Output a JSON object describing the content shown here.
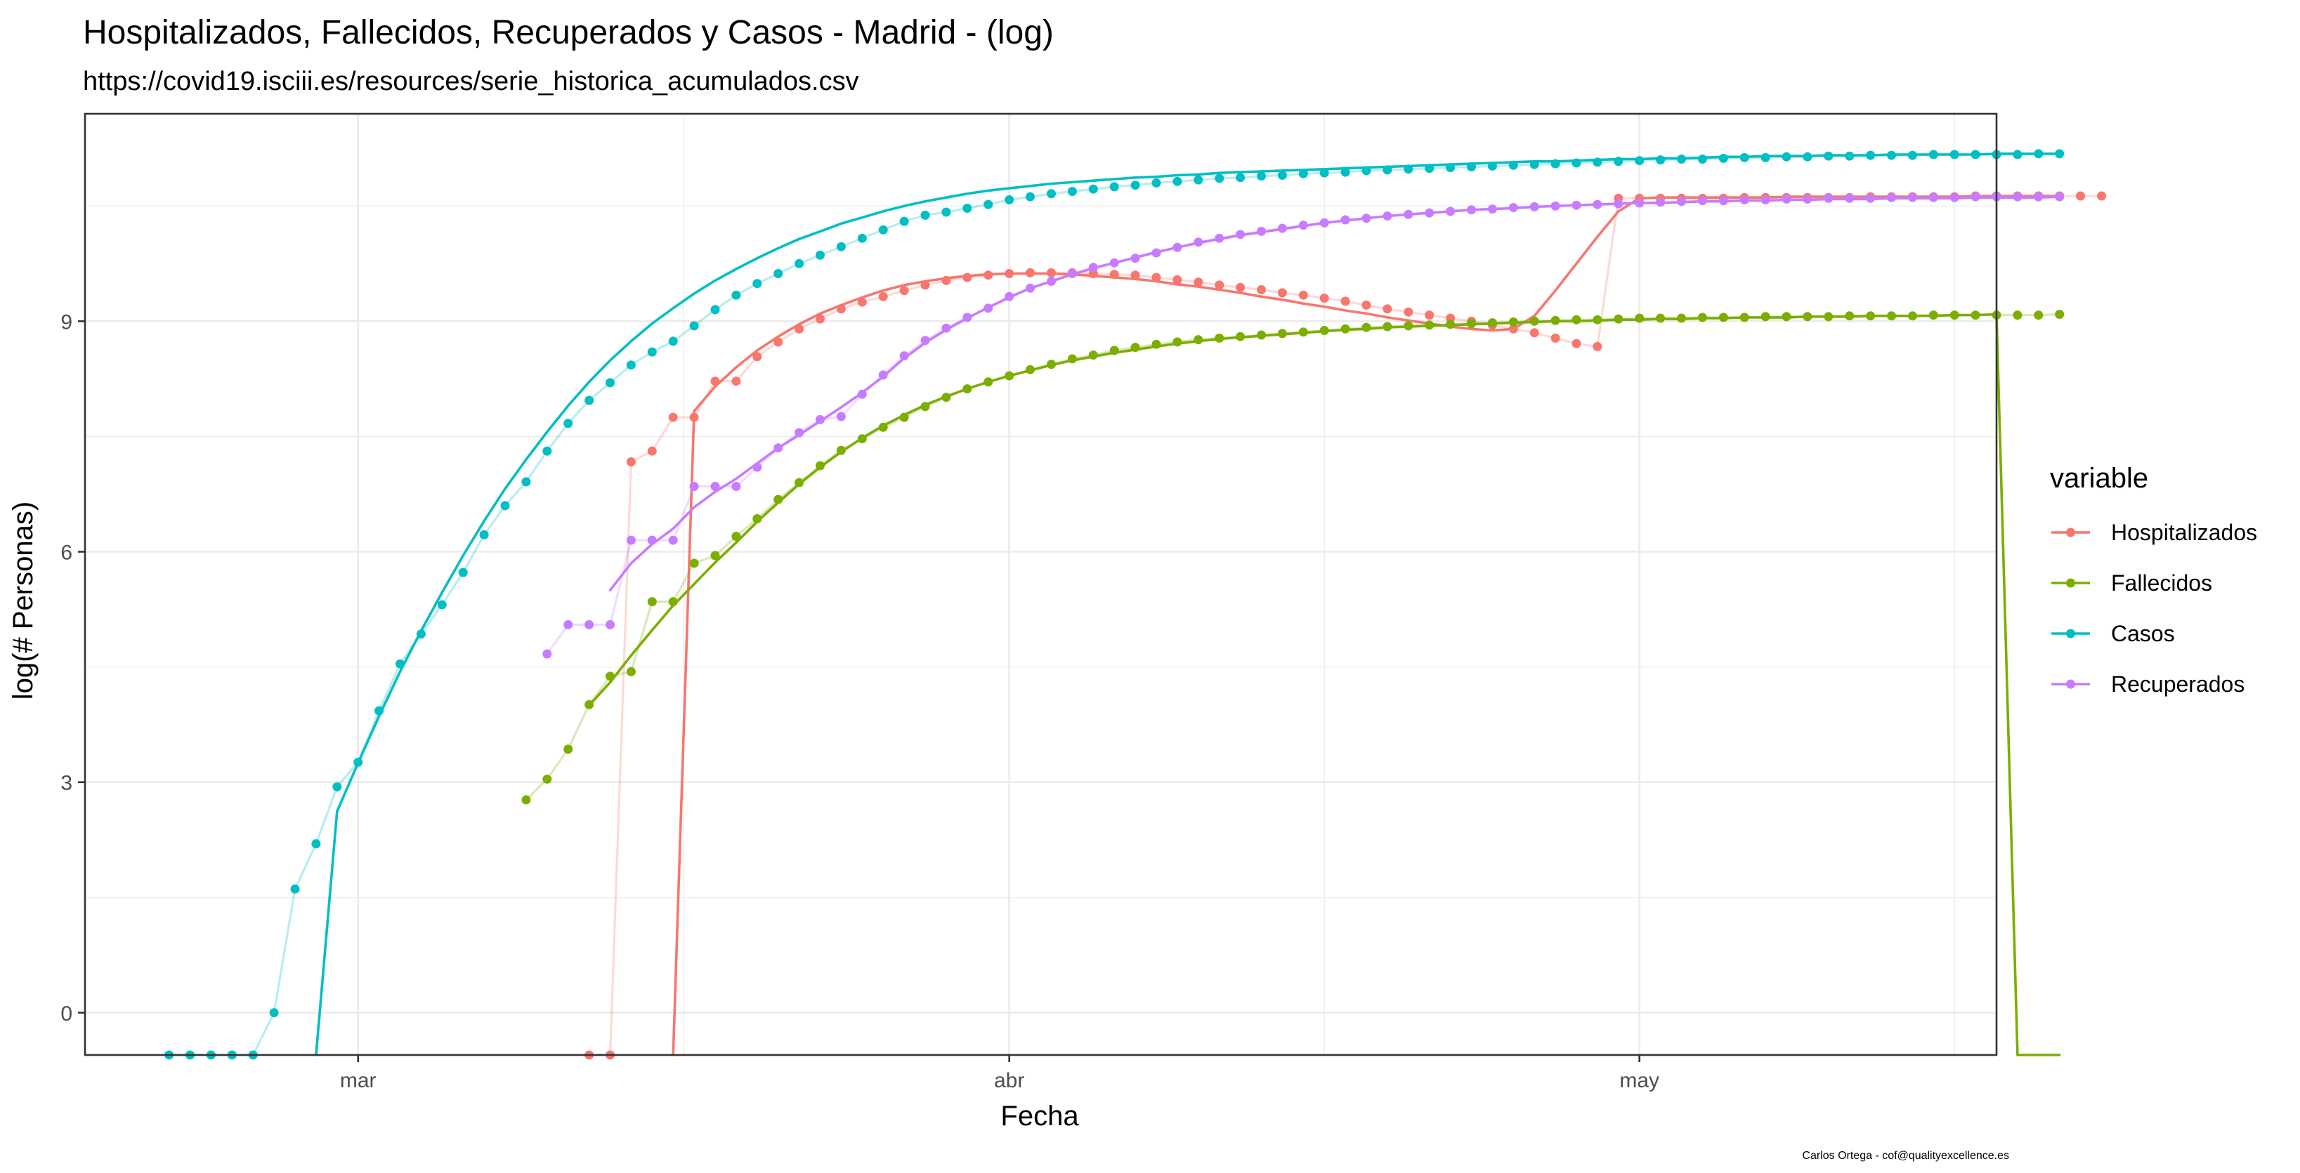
{
  "chart_data": {
    "type": "line",
    "title": "Hospitalizados, Fallecidos, Recuperados y Casos - Madrid - (log)",
    "subtitle": "https://covid19.isciii.es/resources/serie_historica_acumulados.csv",
    "xlabel": "Fecha",
    "ylabel": "log(# Personas)",
    "caption": "Carlos Ortega - cof@qualityexcellence.es",
    "x_start": "2020-02-21",
    "xlim": [
      "2020-02-17",
      "2020-05-18"
    ],
    "ylim": [
      -0.55,
      11.7
    ],
    "y_ticks": [
      0,
      3,
      6,
      9
    ],
    "x_ticks": [
      {
        "label": "mar",
        "date": "2020-03-01"
      },
      {
        "label": "abr",
        "date": "2020-04-01"
      },
      {
        "label": "may",
        "date": "2020-05-01"
      }
    ],
    "grid": true,
    "legend": {
      "title": "variable",
      "position": "right"
    },
    "series": [
      {
        "name": "Hospitalizados",
        "color": "#F8766D",
        "values": [
          null,
          null,
          null,
          null,
          null,
          null,
          null,
          null,
          null,
          null,
          null,
          null,
          null,
          null,
          null,
          null,
          null,
          null,
          null,
          null,
          -0.6,
          -0.6,
          7.17,
          7.31,
          7.75,
          7.75,
          8.22,
          8.22,
          8.54,
          8.73,
          8.9,
          9.03,
          9.16,
          9.25,
          9.32,
          9.4,
          9.47,
          9.53,
          9.57,
          9.6,
          9.62,
          9.63,
          9.63,
          9.63,
          9.62,
          9.61,
          9.6,
          9.57,
          9.54,
          9.51,
          9.47,
          9.44,
          9.41,
          9.37,
          9.34,
          9.3,
          9.26,
          9.21,
          9.16,
          9.12,
          9.08,
          9.04,
          9.0,
          8.95,
          8.9,
          8.85,
          8.78,
          8.71,
          8.67,
          10.6,
          10.6,
          10.6,
          10.6,
          10.6,
          10.6,
          10.61,
          10.61,
          10.61,
          10.61,
          10.61,
          10.61,
          10.62,
          10.62,
          10.62,
          10.62,
          10.62,
          10.63,
          10.63,
          10.63,
          10.63,
          10.63,
          10.63,
          10.63
        ],
        "smooth": [
          null,
          null,
          null,
          null,
          null,
          null,
          null,
          null,
          null,
          null,
          null,
          null,
          null,
          null,
          null,
          null,
          null,
          null,
          null,
          null,
          null,
          null,
          null,
          null,
          -0.6,
          7.83,
          8.15,
          8.4,
          8.62,
          8.8,
          8.96,
          9.1,
          9.21,
          9.31,
          9.4,
          9.47,
          9.52,
          9.56,
          9.59,
          9.61,
          9.62,
          9.62,
          9.62,
          9.61,
          9.59,
          9.57,
          9.55,
          9.52,
          9.48,
          9.45,
          9.41,
          9.37,
          9.32,
          9.28,
          9.23,
          9.19,
          9.14,
          9.1,
          9.05,
          9.01,
          8.97,
          8.93,
          8.9,
          8.88,
          8.9,
          9.07,
          9.4,
          9.75,
          10.1,
          10.43,
          10.6,
          10.61,
          10.61,
          10.61,
          10.61,
          10.61,
          10.61,
          10.62,
          10.62,
          10.62,
          10.62,
          10.62,
          10.62,
          10.62,
          10.62,
          10.62,
          10.63,
          10.63,
          10.63,
          10.63,
          10.63
        ]
      },
      {
        "name": "Fallecidos",
        "color": "#7CAE00",
        "values": [
          null,
          null,
          null,
          null,
          null,
          null,
          null,
          null,
          null,
          null,
          null,
          null,
          null,
          null,
          null,
          null,
          null,
          2.77,
          3.04,
          3.43,
          4.01,
          4.38,
          4.44,
          5.35,
          5.35,
          5.85,
          5.95,
          6.2,
          6.43,
          6.68,
          6.9,
          7.12,
          7.32,
          7.47,
          7.62,
          7.75,
          7.89,
          8.01,
          8.12,
          8.21,
          8.29,
          8.37,
          8.44,
          8.51,
          8.56,
          8.62,
          8.66,
          8.7,
          8.73,
          8.76,
          8.78,
          8.8,
          8.82,
          8.84,
          8.86,
          8.88,
          8.9,
          8.92,
          8.93,
          8.94,
          8.95,
          8.96,
          8.97,
          8.98,
          8.99,
          9.0,
          9.01,
          9.02,
          9.02,
          9.03,
          9.04,
          9.04,
          9.04,
          9.05,
          9.05,
          9.05,
          9.06,
          9.06,
          9.06,
          9.06,
          9.07,
          9.07,
          9.07,
          9.07,
          9.08,
          9.08,
          9.08,
          9.08,
          9.08,
          9.08,
          9.09
        ],
        "smooth": [
          null,
          null,
          null,
          null,
          null,
          null,
          null,
          null,
          null,
          null,
          null,
          null,
          null,
          null,
          null,
          null,
          null,
          null,
          null,
          null,
          4.0,
          4.3,
          4.65,
          4.98,
          5.3,
          5.58,
          5.86,
          6.12,
          6.39,
          6.64,
          6.88,
          7.1,
          7.3,
          7.48,
          7.64,
          7.78,
          7.91,
          8.02,
          8.12,
          8.21,
          8.29,
          8.36,
          8.43,
          8.49,
          8.54,
          8.59,
          8.63,
          8.67,
          8.71,
          8.74,
          8.77,
          8.79,
          8.81,
          8.83,
          8.85,
          8.87,
          8.89,
          8.9,
          8.92,
          8.93,
          8.94,
          8.95,
          8.96,
          8.97,
          8.98,
          8.99,
          9.0,
          9.0,
          9.01,
          9.02,
          9.02,
          9.03,
          9.03,
          9.04,
          9.04,
          9.05,
          9.05,
          9.05,
          9.06,
          9.06,
          9.06,
          9.07,
          9.07,
          9.07,
          9.07,
          9.08,
          9.08,
          9.09,
          -0.6,
          -0.6,
          -0.6
        ]
      },
      {
        "name": "Casos",
        "color": "#00BFC4",
        "values": [
          -0.6,
          -0.6,
          -0.6,
          -0.6,
          -0.6,
          0.0,
          1.61,
          2.2,
          2.94,
          3.26,
          3.93,
          4.54,
          4.93,
          5.31,
          5.73,
          6.22,
          6.6,
          6.91,
          7.31,
          7.67,
          7.97,
          8.2,
          8.43,
          8.6,
          8.74,
          8.94,
          9.15,
          9.34,
          9.49,
          9.62,
          9.75,
          9.86,
          9.97,
          10.08,
          10.19,
          10.3,
          10.38,
          10.42,
          10.47,
          10.52,
          10.58,
          10.62,
          10.66,
          10.69,
          10.72,
          10.75,
          10.77,
          10.8,
          10.82,
          10.84,
          10.86,
          10.87,
          10.89,
          10.9,
          10.92,
          10.93,
          10.94,
          10.96,
          10.97,
          10.98,
          10.99,
          11.0,
          11.01,
          11.02,
          11.03,
          11.04,
          11.05,
          11.06,
          11.07,
          11.08,
          11.09,
          11.1,
          11.11,
          11.11,
          11.12,
          11.13,
          11.13,
          11.14,
          11.14,
          11.15,
          11.15,
          11.16,
          11.16,
          11.16,
          11.17,
          11.17,
          11.17,
          11.17,
          11.17,
          11.18,
          11.18
        ],
        "smooth": [
          null,
          null,
          null,
          null,
          null,
          null,
          null,
          -0.6,
          2.62,
          3.25,
          3.86,
          4.44,
          4.97,
          5.47,
          5.95,
          6.4,
          6.82,
          7.2,
          7.56,
          7.9,
          8.21,
          8.49,
          8.74,
          8.97,
          9.17,
          9.36,
          9.53,
          9.68,
          9.82,
          9.95,
          10.07,
          10.17,
          10.27,
          10.35,
          10.43,
          10.5,
          10.56,
          10.61,
          10.66,
          10.7,
          10.73,
          10.76,
          10.79,
          10.81,
          10.83,
          10.85,
          10.87,
          10.88,
          10.9,
          10.91,
          10.93,
          10.94,
          10.95,
          10.96,
          10.97,
          10.98,
          10.99,
          11.0,
          11.01,
          11.02,
          11.03,
          11.04,
          11.05,
          11.06,
          11.07,
          11.08,
          11.08,
          11.09,
          11.1,
          11.11,
          11.11,
          11.12,
          11.12,
          11.13,
          11.14,
          11.14,
          11.15,
          11.15,
          11.15,
          11.16,
          11.16,
          11.16,
          11.17,
          11.17,
          11.17,
          11.17,
          11.17,
          11.18,
          11.18,
          11.18,
          11.18
        ]
      },
      {
        "name": "Recuperados",
        "color": "#C77CFF",
        "values": [
          null,
          null,
          null,
          null,
          null,
          null,
          null,
          null,
          null,
          null,
          null,
          null,
          null,
          null,
          null,
          null,
          null,
          null,
          4.67,
          5.05,
          5.05,
          5.05,
          6.15,
          6.15,
          6.15,
          6.85,
          6.85,
          6.85,
          7.1,
          7.35,
          7.55,
          7.72,
          7.76,
          8.05,
          8.3,
          8.55,
          8.75,
          8.91,
          9.05,
          9.17,
          9.32,
          9.43,
          9.52,
          9.62,
          9.7,
          9.76,
          9.82,
          9.89,
          9.96,
          10.03,
          10.08,
          10.13,
          10.17,
          10.21,
          10.25,
          10.28,
          10.32,
          10.34,
          10.37,
          10.39,
          10.41,
          10.43,
          10.45,
          10.46,
          10.48,
          10.49,
          10.5,
          10.51,
          10.52,
          10.53,
          10.54,
          10.55,
          10.56,
          10.57,
          10.57,
          10.58,
          10.58,
          10.59,
          10.59,
          10.6,
          10.6,
          10.6,
          10.61,
          10.61,
          10.61,
          10.61,
          10.62,
          10.62,
          10.62,
          10.62,
          10.62
        ],
        "smooth": [
          null,
          null,
          null,
          null,
          null,
          null,
          null,
          null,
          null,
          null,
          null,
          null,
          null,
          null,
          null,
          null,
          null,
          null,
          null,
          null,
          null,
          5.5,
          5.85,
          6.1,
          6.3,
          6.58,
          6.78,
          6.95,
          7.15,
          7.35,
          7.52,
          7.7,
          7.88,
          8.07,
          8.28,
          8.52,
          8.72,
          8.89,
          9.04,
          9.18,
          9.31,
          9.43,
          9.52,
          9.61,
          9.69,
          9.76,
          9.83,
          9.9,
          9.96,
          10.02,
          10.07,
          10.12,
          10.16,
          10.2,
          10.24,
          10.28,
          10.31,
          10.34,
          10.37,
          10.39,
          10.41,
          10.43,
          10.45,
          10.46,
          10.47,
          10.49,
          10.5,
          10.51,
          10.52,
          10.53,
          10.54,
          10.54,
          10.55,
          10.56,
          10.56,
          10.57,
          10.57,
          10.58,
          10.58,
          10.59,
          10.59,
          10.59,
          10.6,
          10.6,
          10.6,
          10.6,
          10.61,
          10.61,
          10.61,
          10.61,
          10.62
        ]
      }
    ]
  }
}
